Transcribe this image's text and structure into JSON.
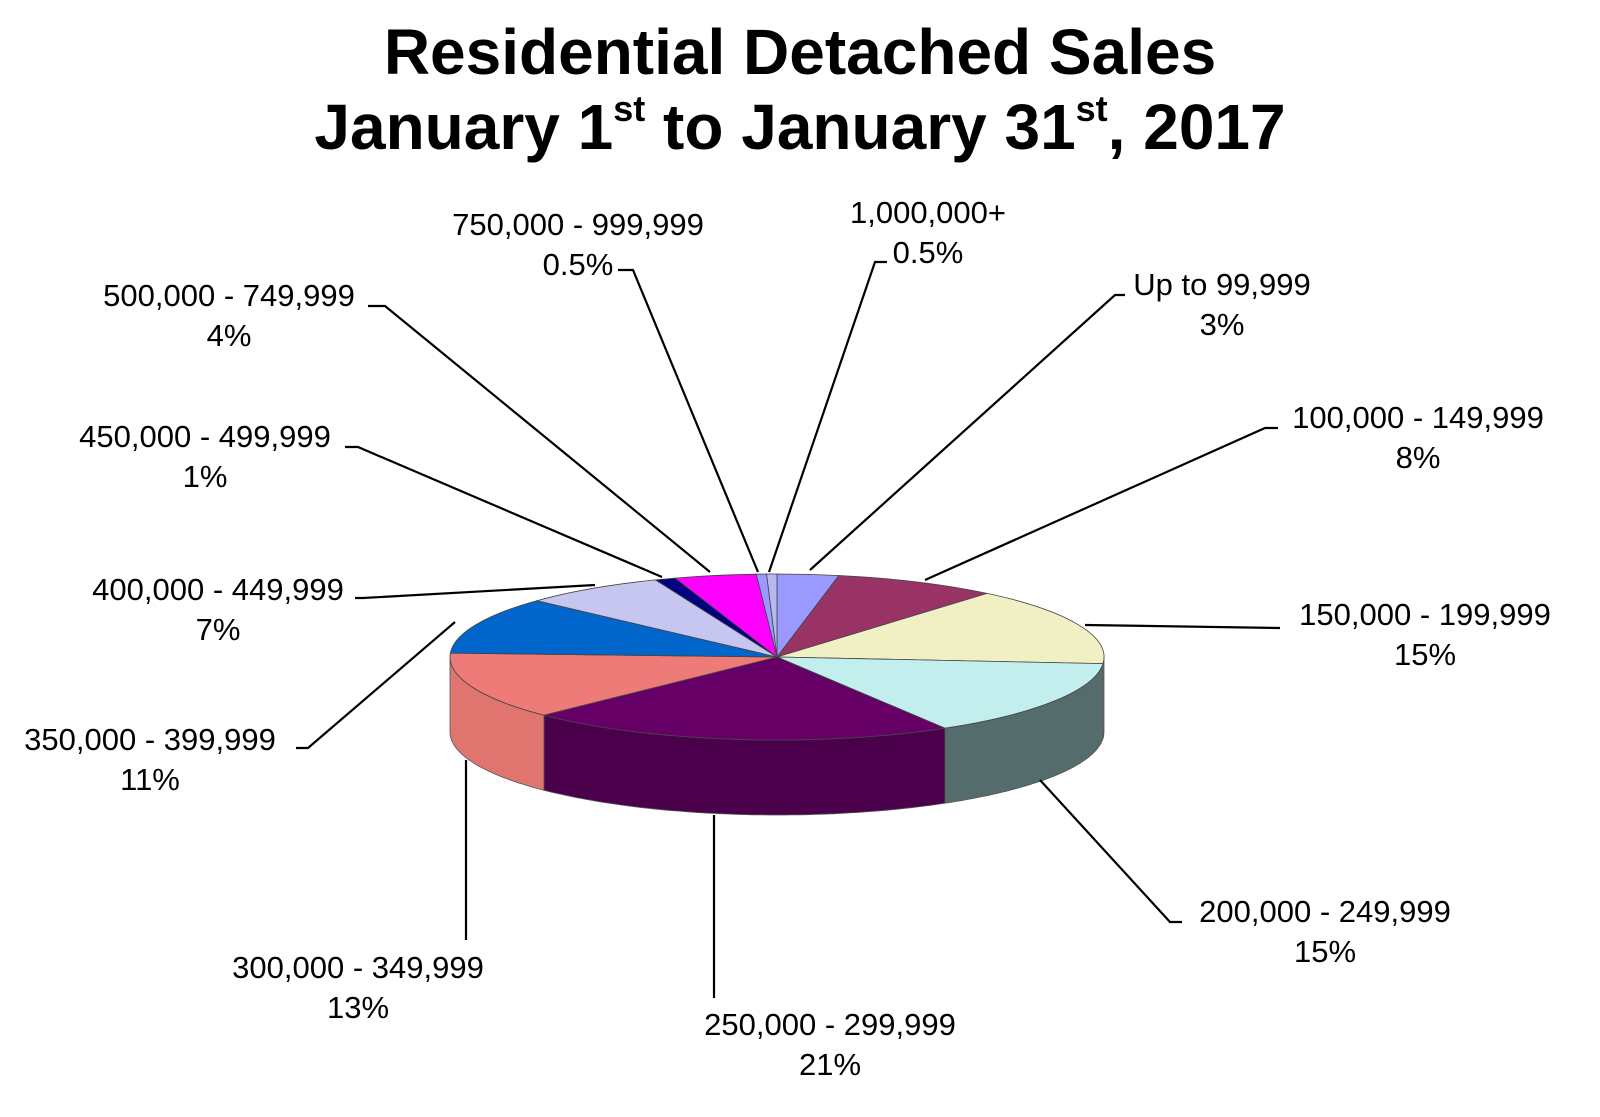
{
  "chart_data": {
    "type": "pie",
    "title": {
      "line1": "Residential Detached Sales",
      "line2_parts": [
        {
          "text": "January 1"
        },
        {
          "text": "st",
          "sup": true
        },
        {
          "text": " to January 31"
        },
        {
          "text": "st",
          "sup": true
        },
        {
          "text": ", 2017"
        }
      ]
    },
    "slices": [
      {
        "name": "Up to 99,999",
        "pct_label": "3%",
        "value": 3,
        "color": "#9999ff",
        "side": "#6f6fc0"
      },
      {
        "name": "100,000 - 149,999",
        "pct_label": "8%",
        "value": 8,
        "color": "#993366",
        "side": "#6b2447"
      },
      {
        "name": "150,000 - 199,999",
        "pct_label": "15%",
        "value": 15,
        "color": "#f0f0c4",
        "side": "#b8b890"
      },
      {
        "name": "200,000 - 249,999",
        "pct_label": "15%",
        "value": 15,
        "color": "#c2eeee",
        "side": "#546c6c"
      },
      {
        "name": "250,000 - 299,999",
        "pct_label": "21%",
        "value": 21,
        "color": "#660066",
        "side": "#4a004a"
      },
      {
        "name": "300,000 - 349,999",
        "pct_label": "13%",
        "value": 13,
        "color": "#ee7b78",
        "side": "#e07570"
      },
      {
        "name": "350,000 - 399,999",
        "pct_label": "11%",
        "value": 11,
        "color": "#0066cc",
        "side": "#004c99"
      },
      {
        "name": "400,000 - 449,999",
        "pct_label": "7%",
        "value": 7,
        "color": "#c6c6f0",
        "side": "#9a9ac0"
      },
      {
        "name": "450,000 - 499,999",
        "pct_label": "1%",
        "value": 1,
        "color": "#000080",
        "side": "#000060"
      },
      {
        "name": "500,000 - 749,999",
        "pct_label": "4%",
        "value": 4,
        "color": "#ff00ff",
        "side": "#c000c0"
      },
      {
        "name": "750,000 - 999,999",
        "pct_label": "0.5%",
        "value": 0.5,
        "color": "#9999ff",
        "side": "#6f6fc0"
      },
      {
        "name": "1,000,000+",
        "pct_label": "0.5%",
        "value": 0.5,
        "color": "#b8b8f0",
        "side": "#8888c0"
      }
    ]
  }
}
